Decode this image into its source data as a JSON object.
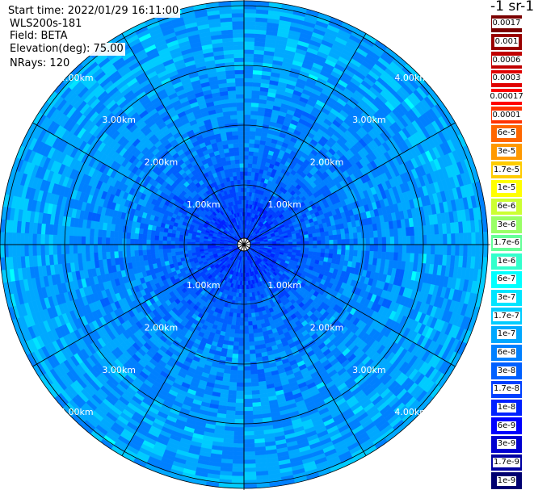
{
  "header": {
    "start_time": "Start time: 2022/01/29 16:11:00",
    "instrument": "WLS200s-181",
    "field": "Field: BETA",
    "elevation": "Elevation(deg): 75.00",
    "nrays": "NRays: 120"
  },
  "colorbar": {
    "units": "-1 sr-1",
    "labels": [
      "0.0017",
      "0.001",
      "0.0006",
      "0.0003",
      "0.00017",
      "0.0001",
      "6e-5",
      "3e-5",
      "1.7e-5",
      "1e-5",
      "6e-6",
      "3e-6",
      "1.7e-6",
      "1e-6",
      "6e-7",
      "3e-7",
      "1.7e-7",
      "1e-7",
      "6e-8",
      "3e-8",
      "1.7e-8",
      "1e-8",
      "6e-9",
      "3e-9",
      "1.7e-9",
      "1e-9"
    ],
    "colors": [
      "#7a0000",
      "#9a0000",
      "#c00000",
      "#e00000",
      "#ff0000",
      "#ff3300",
      "#ff6600",
      "#ff9900",
      "#ffcc00",
      "#ffff00",
      "#ccff33",
      "#99ff66",
      "#66ff99",
      "#33ffcc",
      "#00ffff",
      "#00e5ff",
      "#00ccff",
      "#00a8ff",
      "#0080ff",
      "#0060ff",
      "#0040ff",
      "#0020ff",
      "#0000ff",
      "#0000d0",
      "#0000a0",
      "#000070"
    ]
  },
  "chart_data": {
    "type": "heatmap",
    "projection": "polar-ppi",
    "field": "BETA",
    "elevation_deg": 75.0,
    "n_rays": 120,
    "range_rings_km": [
      1,
      2,
      3,
      4
    ],
    "range_ring_labels": [
      "1.00km",
      "2.00km",
      "3.00km",
      "4.00km"
    ],
    "max_range_km": 4.7,
    "spoke_angles_deg": [
      0,
      30,
      60,
      90,
      120,
      150,
      180,
      210,
      240,
      270,
      300,
      330
    ],
    "value_scale": "log",
    "value_range": [
      1e-09,
      0.0017
    ],
    "typical_values_by_range": [
      {
        "range_km": 0.5,
        "value": 1.7e-08
      },
      {
        "range_km": 1.0,
        "value": 3e-08
      },
      {
        "range_km": 2.0,
        "value": 6e-08
      },
      {
        "range_km": 3.0,
        "value": 8e-08
      },
      {
        "range_km": 4.0,
        "value": 1e-07
      },
      {
        "range_km": 4.6,
        "value": 1.2e-07
      }
    ]
  }
}
